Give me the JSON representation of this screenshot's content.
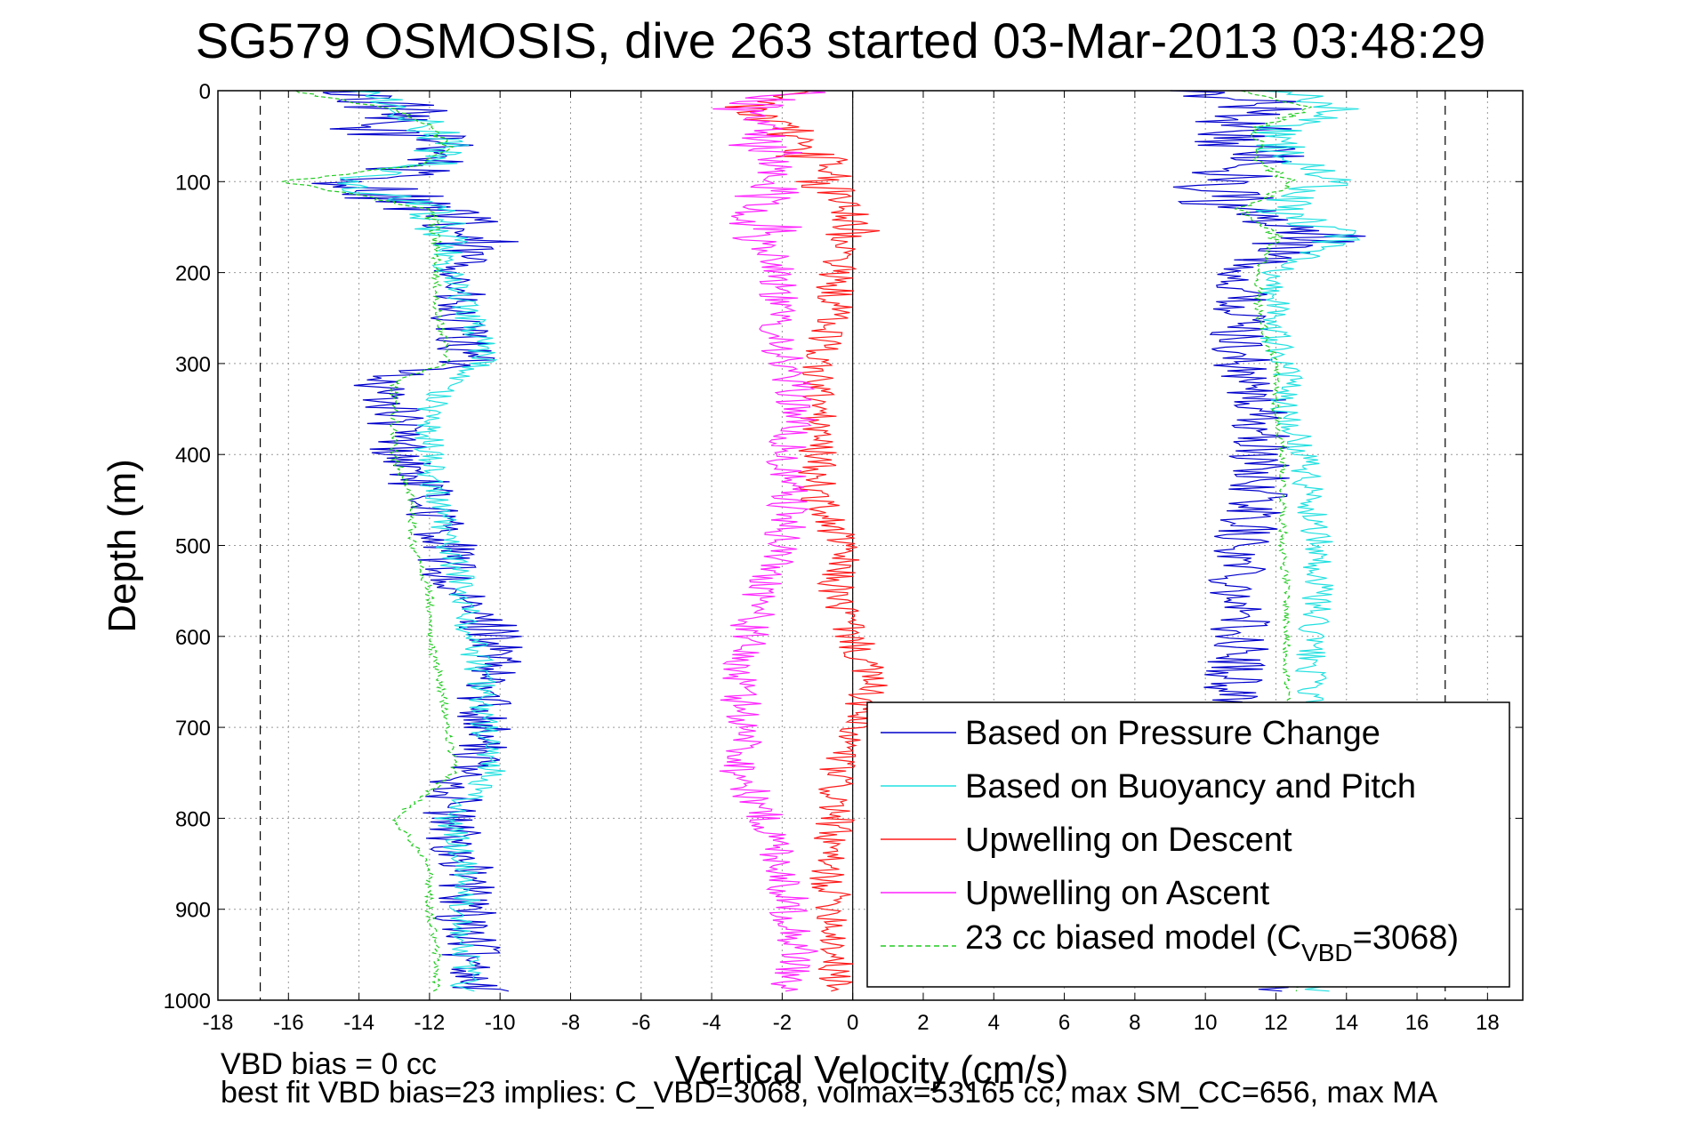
{
  "chart_data": {
    "type": "line",
    "title": "SG579 OSMOSIS, dive 263 started 03-Mar-2013 03:48:29",
    "xlabel": "Vertical Velocity (cm/s)",
    "ylabel": "Depth (m)",
    "xlim": [
      -18,
      19
    ],
    "ylim": [
      0,
      1000
    ],
    "y_reversed": true,
    "grid": true,
    "xticks": [
      "-18",
      "-16",
      "-14",
      "-12",
      "-10",
      "-8",
      "-6",
      "-4",
      "-2",
      "0",
      "2",
      "4",
      "6",
      "8",
      "10",
      "12",
      "14",
      "16",
      "18"
    ],
    "yticks": [
      "0",
      "100",
      "200",
      "300",
      "400",
      "500",
      "600",
      "700",
      "800",
      "900",
      "1000"
    ],
    "reference_lines": {
      "zero_x": 0,
      "dashed_x": [
        -16.8,
        16.8
      ]
    },
    "legend_position": "bottom-right",
    "legend": [
      {
        "label": "Based on Pressure Change",
        "color": "#0000cc",
        "dashed": false
      },
      {
        "label": "Based on Buoyancy and Pitch",
        "color": "#22e0e0",
        "dashed": false
      },
      {
        "label": "Upwelling on Descent",
        "color": "#ff1a1a",
        "dashed": false
      },
      {
        "label": "Upwelling on Ascent",
        "color": "#ff22ff",
        "dashed": false
      },
      {
        "label_main": "23 cc biased model (C",
        "label_sub": "VBD",
        "label_tail": "=3068)",
        "color": "#22cc22",
        "dashed": true
      }
    ],
    "series": [
      {
        "name": "Based on Pressure Change",
        "color": "#0000cc",
        "noise": 0.9,
        "dashed": false,
        "segments": [
          {
            "depth": [
              0,
              20,
              40,
              60,
              80,
              100,
              130,
              160,
              200,
              240,
              280,
              300,
              320,
              350,
              400,
              450,
              500,
              550,
              600,
              650,
              700,
              750,
              800,
              850,
              900,
              950,
              990
            ],
            "x": [
              -14,
              -13,
              -14,
              -11,
              -12,
              -14,
              -12,
              -11,
              -11,
              -11.5,
              -11,
              -11,
              -13.5,
              -13,
              -12.8,
              -12,
              -11.5,
              -11.5,
              -10,
              -10.5,
              -10.3,
              -11,
              -11.5,
              -11,
              -11,
              -10.8,
              -10.5
            ]
          },
          {
            "depth": [
              0,
              20,
              40,
              60,
              80,
              100,
              130,
              160,
              200,
              240,
              280,
              300,
              350,
              400,
              450,
              500,
              550,
              600,
              650,
              700,
              750,
              800,
              850,
              900,
              950,
              990
            ],
            "x": [
              10.5,
              11.5,
              11,
              11,
              11.5,
              10.5,
              10.5,
              13,
              11,
              11,
              11,
              11,
              11.5,
              11.5,
              11.5,
              11,
              11,
              11,
              10.8,
              11.2,
              11,
              11.3,
              11.2,
              11.5,
              11.5,
              11.5
            ]
          }
        ]
      },
      {
        "name": "Based on Buoyancy and Pitch",
        "color": "#22e0e0",
        "noise": 0.45,
        "dashed": false,
        "segments": [
          {
            "depth": [
              0,
              20,
              40,
              60,
              80,
              100,
              130,
              160,
              200,
              240,
              280,
              300,
              320,
              350,
              400,
              450,
              500,
              550,
              600,
              650,
              700,
              750,
              800,
              850,
              900,
              950,
              990
            ],
            "x": [
              -14,
              -13,
              -12,
              -11.5,
              -12,
              -14.5,
              -12,
              -11.5,
              -11.5,
              -11,
              -10.5,
              -10.5,
              -11.5,
              -12,
              -12,
              -11.8,
              -11.5,
              -11,
              -10.8,
              -10.5,
              -10.5,
              -10.2,
              -11.5,
              -11,
              -11,
              -11,
              -11
            ]
          },
          {
            "depth": [
              0,
              20,
              40,
              60,
              80,
              100,
              130,
              160,
              200,
              240,
              280,
              300,
              350,
              400,
              450,
              500,
              550,
              600,
              650,
              700,
              750,
              800,
              850,
              900,
              950,
              990
            ],
            "x": [
              12,
              14,
              12,
              12,
              12.5,
              13.5,
              12,
              14,
              12,
              12,
              12,
              12.3,
              12.3,
              12.8,
              13,
              13.2,
              13.2,
              13,
              13,
              13,
              13.2,
              13.2,
              13.2,
              13.2,
              13.2,
              13.2
            ]
          }
        ]
      },
      {
        "name": "23 cc biased model",
        "color": "#22cc22",
        "noise": 0.12,
        "dashed": true,
        "segments": [
          {
            "depth": [
              0,
              20,
              40,
              60,
              80,
              100,
              130,
              160,
              200,
              240,
              280,
              300,
              320,
              350,
              400,
              450,
              500,
              550,
              600,
              650,
              700,
              750,
              800,
              850,
              900,
              950,
              990
            ],
            "x": [
              -16,
              -13,
              -12,
              -11.5,
              -12,
              -16.2,
              -12,
              -11.8,
              -11.8,
              -11.8,
              -11.5,
              -11.5,
              -13,
              -13,
              -13,
              -12.5,
              -12.5,
              -12,
              -12,
              -11.7,
              -11.5,
              -11.3,
              -13,
              -12,
              -12,
              -11.8,
              -11.8
            ]
          },
          {
            "depth": [
              0,
              20,
              40,
              60,
              80,
              100,
              130,
              160,
              200,
              240,
              280,
              300,
              350,
              400,
              450,
              500,
              550,
              600,
              650,
              700,
              750,
              800,
              850,
              900,
              950,
              990
            ],
            "x": [
              11,
              13,
              11.5,
              11.5,
              11.5,
              12.5,
              11,
              12,
              11.5,
              11.5,
              11.8,
              12,
              12,
              12.2,
              12.2,
              12.2,
              12.3,
              12.3,
              12.3,
              12.4,
              12.4,
              12.5,
              12.5,
              12.5,
              12.5,
              12.5
            ]
          }
        ]
      },
      {
        "name": "Upwelling on Descent",
        "color": "#ff1a1a",
        "noise": 0.55,
        "dashed": false,
        "segments": [
          {
            "depth": [
              0,
              20,
              40,
              60,
              80,
              100,
              130,
              160,
              200,
              240,
              280,
              300,
              350,
              400,
              450,
              500,
              550,
              600,
              650,
              700,
              750,
              800,
              850,
              900,
              950,
              990
            ],
            "x": [
              -2,
              -3,
              -2,
              -1.5,
              -1,
              -1,
              0,
              0,
              -0.5,
              -0.5,
              -0.8,
              -1,
              -1,
              -1,
              -1,
              -0.3,
              -0.5,
              0,
              0.5,
              0,
              -0.5,
              -0.5,
              -0.8,
              -0.5,
              -0.5,
              -0.5
            ]
          }
        ]
      },
      {
        "name": "Upwelling on Ascent",
        "color": "#ff22ff",
        "noise": 0.6,
        "dashed": false,
        "segments": [
          {
            "depth": [
              0,
              20,
              40,
              60,
              80,
              100,
              130,
              160,
              200,
              240,
              280,
              300,
              350,
              400,
              450,
              500,
              550,
              600,
              650,
              700,
              750,
              800,
              850,
              900,
              950,
              990
            ],
            "x": [
              -1.5,
              -3,
              -2.5,
              -2.5,
              -2.5,
              -2.5,
              -2.5,
              -2.5,
              -2,
              -2.2,
              -2,
              -2,
              -1.5,
              -2,
              -1.8,
              -2,
              -2.5,
              -3,
              -3.3,
              -3,
              -3.2,
              -2.5,
              -2,
              -1.8,
              -1.5,
              -2
            ]
          }
        ]
      }
    ]
  },
  "footer": {
    "line1": "VBD bias = 0 cc",
    "line2": "best fit VBD bias=23 implies: C_VBD=3068, volmax=53165 cc, max SM_CC=656, max MA"
  }
}
